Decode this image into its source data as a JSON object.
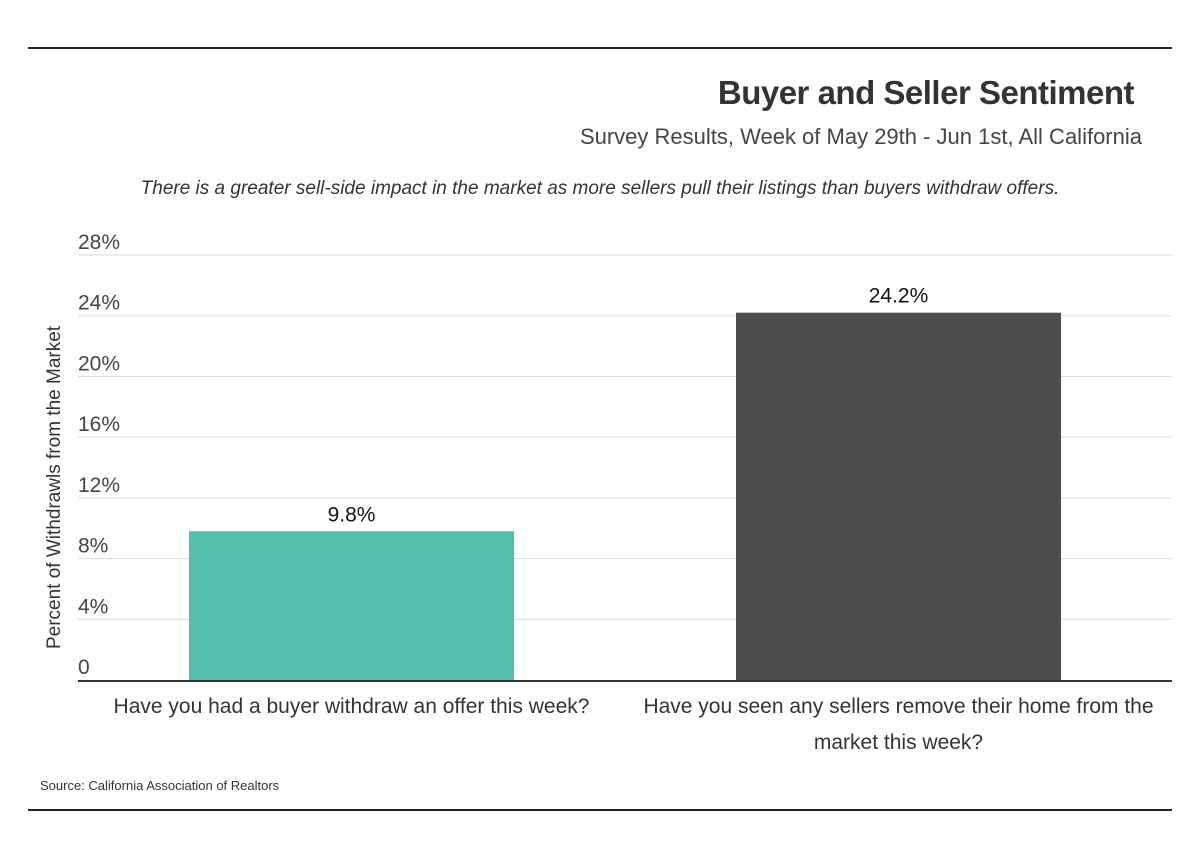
{
  "chart_data": {
    "type": "bar",
    "title": "Buyer and Seller Sentiment",
    "subtitle": "Survey Results, Week of May 29th - Jun 1st, All California",
    "annotation": "There is a greater sell-side impact in the market as more sellers pull their listings than buyers withdraw offers.",
    "ylabel": "Percent of Withdrawls from the Market",
    "xlabel": "",
    "categories": [
      [
        "Have you had a buyer withdraw an offer this week?"
      ],
      [
        "Have you seen any sellers remove their home from the",
        "market this week?"
      ]
    ],
    "values": [
      9.8,
      24.2
    ],
    "value_labels": [
      "9.8%",
      "24.2%"
    ],
    "bar_colors": [
      "#52bfab",
      "#4d4d4d"
    ],
    "ylim": [
      0,
      28
    ],
    "yticks": [
      0,
      4,
      8,
      12,
      16,
      20,
      24,
      28
    ],
    "ytick_labels": [
      "0",
      "4%",
      "8%",
      "12%",
      "16%",
      "20%",
      "24%",
      "28%"
    ],
    "grid": true,
    "source": "Source:  California Association of Realtors"
  }
}
